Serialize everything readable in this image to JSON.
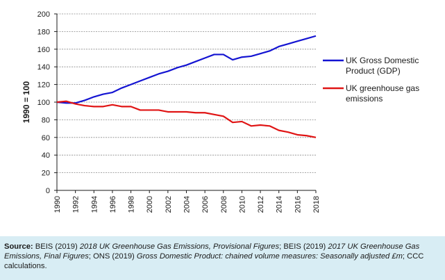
{
  "chart_data": {
    "type": "line",
    "ylabel": "1990 = 100",
    "ylim": [
      0,
      200
    ],
    "yticks": [
      "0",
      "20",
      "40",
      "60",
      "80",
      "100",
      "120",
      "140",
      "160",
      "180",
      "200"
    ],
    "xticks": [
      "1990",
      "1992",
      "1994",
      "1996",
      "1998",
      "2000",
      "2002",
      "2004",
      "2006",
      "2008",
      "2010",
      "2012",
      "2014",
      "2016",
      "2018"
    ],
    "x": [
      1990,
      1991,
      1992,
      1993,
      1994,
      1995,
      1996,
      1997,
      1998,
      1999,
      2000,
      2001,
      2002,
      2003,
      2004,
      2005,
      2006,
      2007,
      2008,
      2009,
      2010,
      2011,
      2012,
      2013,
      2014,
      2015,
      2016,
      2017,
      2018
    ],
    "grid": true,
    "legend_position": "right",
    "series": [
      {
        "name": "UK Gross Domestic Product (GDP)",
        "legend_lines": [
          "UK Gross Domestic",
          "Product (GDP)"
        ],
        "color": "#1414d2",
        "values": [
          100,
          99,
          99,
          102,
          106,
          109,
          111,
          116,
          120,
          124,
          128,
          132,
          135,
          139,
          142,
          146,
          150,
          154,
          154,
          148,
          151,
          152,
          155,
          158,
          163,
          166,
          169,
          172,
          175
        ]
      },
      {
        "name": "UK greenhouse gas emissions",
        "legend_lines": [
          "UK greenhouse gas",
          "emissions"
        ],
        "color": "#e01414",
        "values": [
          100,
          101,
          98,
          96,
          95,
          95,
          97,
          95,
          95,
          91,
          91,
          91,
          89,
          89,
          89,
          88,
          88,
          86,
          84,
          77,
          78,
          73,
          74,
          73,
          68,
          66,
          63,
          62,
          60
        ]
      }
    ]
  },
  "source": {
    "label": "Source:",
    "parts": [
      {
        "t": " BEIS (2019) ",
        "s": "n"
      },
      {
        "t": "2018 UK Greenhouse Gas Emissions, Provisional Figures",
        "s": "i"
      },
      {
        "t": "; BEIS (2019) ",
        "s": "n"
      },
      {
        "t": "2017 UK Greenhouse Gas Emissions, Final Figures",
        "s": "i"
      },
      {
        "t": "; ONS (2019) ",
        "s": "n"
      },
      {
        "t": "Gross Domestic Product: chained volume measures: Seasonally adjusted £m",
        "s": "i"
      },
      {
        "t": "; CCC calculations.",
        "s": "n"
      }
    ]
  }
}
